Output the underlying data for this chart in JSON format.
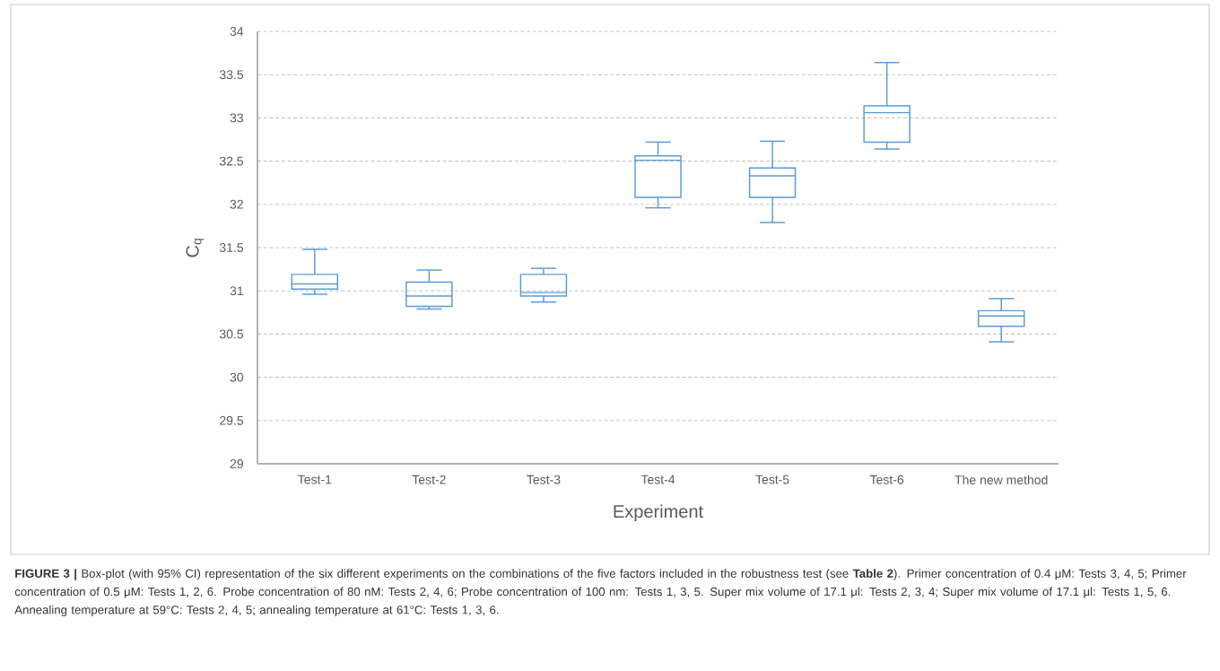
{
  "chart_data": {
    "type": "box",
    "categories": [
      "Test-1",
      "Test-2",
      "Test-3",
      "Test-4",
      "Test-5",
      "Test-6",
      "The new method"
    ],
    "boxes": [
      {
        "low": 30.96,
        "q1": 31.02,
        "median": 31.08,
        "q3": 31.19,
        "high": 31.48
      },
      {
        "low": 30.79,
        "q1": 30.82,
        "median": 30.94,
        "q3": 31.1,
        "high": 31.24
      },
      {
        "low": 30.87,
        "q1": 30.94,
        "median": 30.98,
        "q3": 31.19,
        "high": 31.26
      },
      {
        "low": 31.96,
        "q1": 32.08,
        "median": 32.51,
        "q3": 32.56,
        "high": 32.72
      },
      {
        "low": 31.79,
        "q1": 32.08,
        "median": 32.33,
        "q3": 32.42,
        "high": 32.73
      },
      {
        "low": 32.64,
        "q1": 32.72,
        "median": 33.06,
        "q3": 33.14,
        "high": 33.64
      },
      {
        "low": 30.41,
        "q1": 30.59,
        "median": 30.71,
        "q3": 30.77,
        "high": 30.91
      }
    ],
    "color": "#5b9bd5",
    "xlabel": "Experiment",
    "ylabel": "C$_{q}$",
    "ylim": [
      29,
      34
    ],
    "yticks": [
      29,
      29.5,
      30,
      30.5,
      31,
      31.5,
      32,
      32.5,
      33,
      33.5,
      34
    ],
    "grid": "y",
    "annotations": [
      "**FIGURE 3 |** Box-plot (with 95% CI) representation of the six different experiments on the combinations of the five factors included in the robustness test (see **Table 2**). Primer concentration of 0.4 μM: Tests 3, 4, 5; Primer concentration of 0.5 μM: Tests 1, 2, 6. Probe concentration of 80 nM: Tests 2, 4, 6; Probe concentration of 100 nm: Tests 1, 3, 5. Super mix volume of 17.1 μl: Tests 2, 3, 4; Super mix volume of 17.1 μl: Tests 1, 5, 6. Annealing temperature at 59°C: Tests 2, 4, 5; annealing temperature at 61°C: Tests 1, 3, 6."
    ]
  }
}
